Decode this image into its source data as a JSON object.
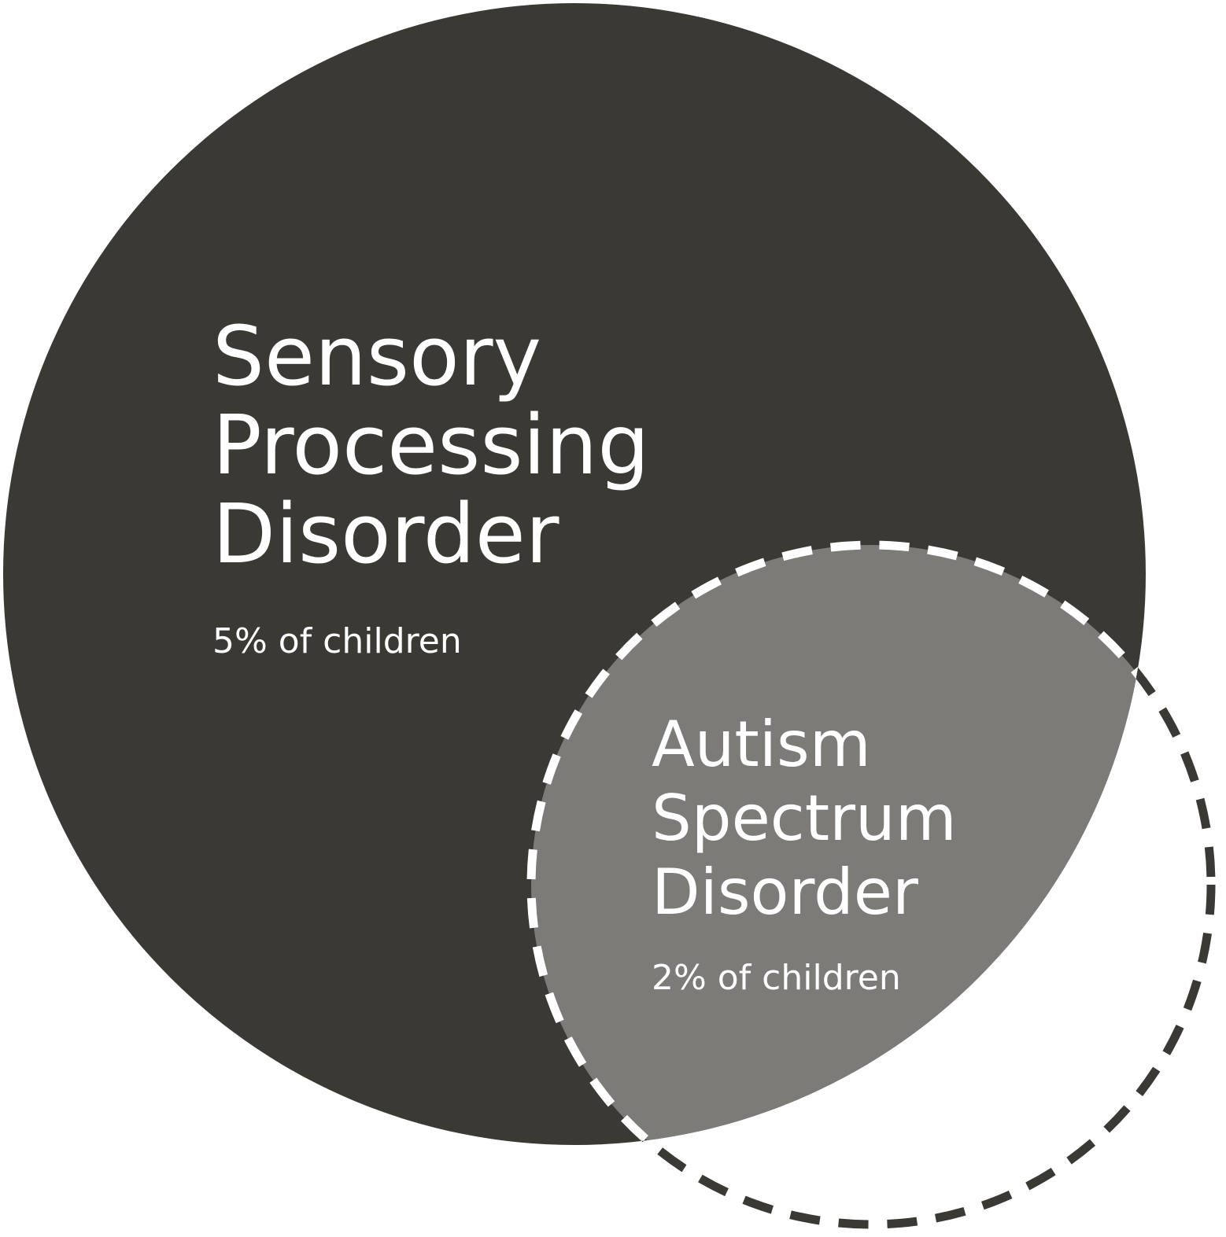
{
  "diagram": {
    "sets": [
      {
        "id": "spd",
        "lines": [
          "Sensory",
          "Processing",
          "Disorder"
        ],
        "stat": "5% of children"
      },
      {
        "id": "asd",
        "lines": [
          "Autism",
          "Spectrum",
          "Disorder"
        ],
        "stat": "2% of children"
      }
    ],
    "colors": {
      "spd_fill": "#3a3934",
      "overlap_fill": "#7c7b77",
      "background": "#ffffff",
      "label_text": "#ffffff",
      "dash_light": "#ffffff",
      "dash_dark": "#3a3934"
    }
  }
}
